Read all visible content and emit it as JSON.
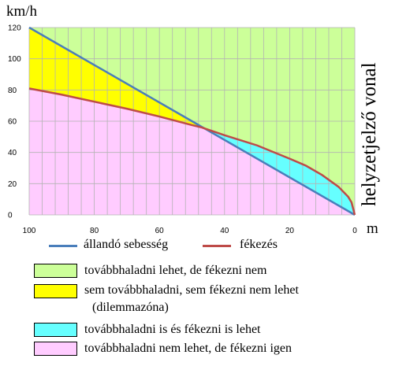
{
  "chart_data": {
    "type": "area",
    "title": "",
    "xlabel": "m",
    "ylabel": "km/h",
    "side_label": "helyzetjelző vonal",
    "xlim": [
      100,
      0
    ],
    "ylim": [
      0,
      120
    ],
    "x_ticks": [
      100,
      80,
      60,
      40,
      20,
      0
    ],
    "y_ticks": [
      0,
      20,
      40,
      60,
      80,
      100,
      120
    ],
    "x_tick_labels": [
      "100",
      "80",
      "60",
      "40",
      "20",
      "0"
    ],
    "y_tick_labels": [
      "0",
      "20",
      "40",
      "60",
      "80",
      "100",
      "120"
    ],
    "grid": true,
    "x_direction": "reversed",
    "series": [
      {
        "name": "állandó sebesség",
        "color": "#4a7ebb",
        "x": [
          100,
          0
        ],
        "y": [
          120,
          0
        ]
      },
      {
        "name": "fékezés",
        "color": "#be4b48",
        "x": [
          100,
          90,
          80,
          70,
          60,
          50,
          47,
          40,
          30,
          20,
          15,
          10,
          5,
          2,
          1,
          0
        ],
        "y": [
          81,
          77,
          72.5,
          68,
          63,
          57.5,
          56,
          51,
          44.5,
          36,
          31.5,
          25.5,
          18,
          11.5,
          8,
          0
        ]
      }
    ],
    "regions": [
      {
        "label": "továbbhaladni lehet, de fékezni nem",
        "color": "#ccff99"
      },
      {
        "label": "sem továbbhaladni, sem fékezni nem lehet",
        "label2": "(dilemmazóna)",
        "color": "#ffff00"
      },
      {
        "label": "továbbhaladni is és fékezni is lehet",
        "color": "#66ffff"
      },
      {
        "label": "továbbhaladni nem lehet, de fékezni igen",
        "color": "#ffccff"
      }
    ]
  }
}
